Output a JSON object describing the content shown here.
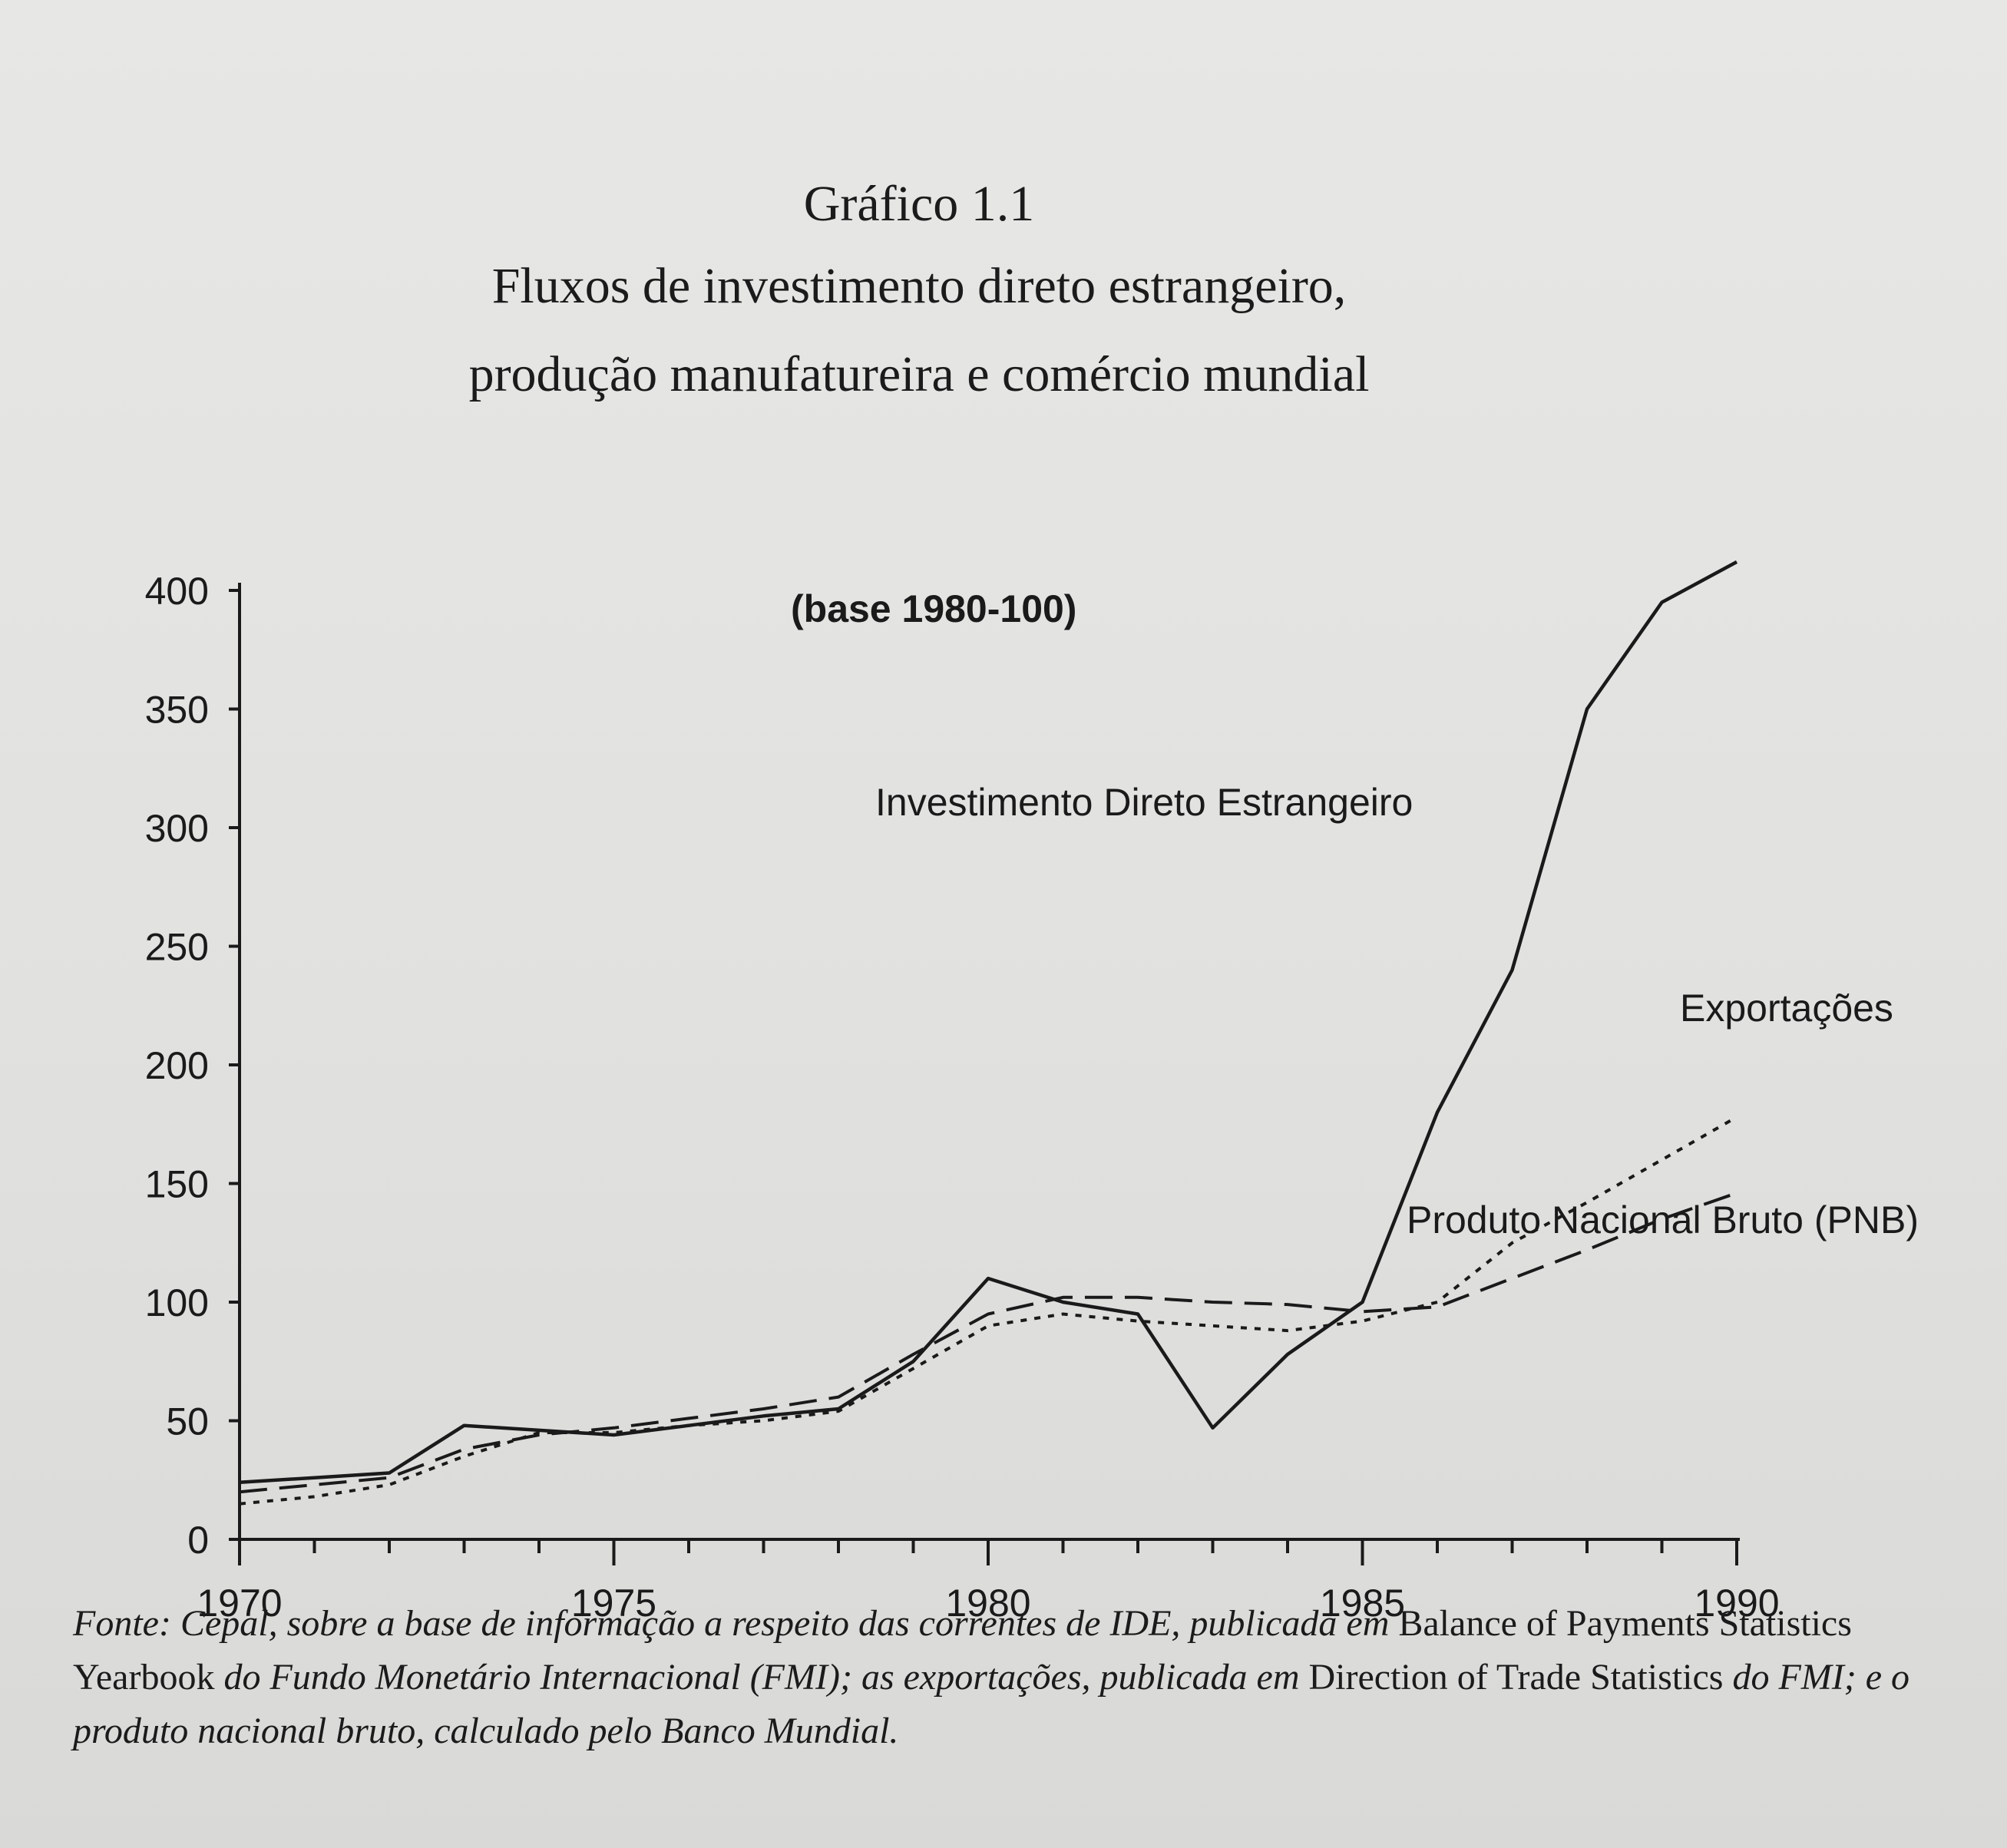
{
  "title": {
    "line1": "Gráfico 1.1",
    "line2": "Fluxos de investimento direto estrangeiro,",
    "line3": "produção manufatureira e comércio mundial"
  },
  "chart_data": {
    "type": "line",
    "annotation": "(base 1980-100)",
    "xlim": [
      1970,
      1990
    ],
    "ylim": [
      0,
      400
    ],
    "x_ticks": [
      "1970",
      "1975",
      "1980",
      "1985",
      "1990"
    ],
    "y_ticks": [
      "0",
      "50",
      "100",
      "150",
      "200",
      "250",
      "300",
      "350",
      "400"
    ],
    "x": [
      1970,
      1971,
      1972,
      1973,
      1974,
      1975,
      1976,
      1977,
      1978,
      1979,
      1980,
      1981,
      1982,
      1983,
      1984,
      1985,
      1986,
      1987,
      1988,
      1989,
      1990
    ],
    "series": [
      {
        "name": "Investimento Direto Estrangeiro",
        "style": "solid",
        "values": [
          24,
          26,
          28,
          48,
          46,
          44,
          48,
          52,
          55,
          75,
          110,
          100,
          95,
          47,
          78,
          100,
          180,
          240,
          350,
          395,
          412
        ]
      },
      {
        "name": "Exportações",
        "style": "dotted",
        "values": [
          15,
          18,
          23,
          35,
          45,
          45,
          48,
          50,
          54,
          72,
          90,
          95,
          92,
          90,
          88,
          92,
          100,
          125,
          142,
          160,
          178
        ]
      },
      {
        "name": "Produto Nacional Bruto (PNB)",
        "style": "dashed",
        "values": [
          20,
          23,
          26,
          38,
          44,
          47,
          51,
          55,
          60,
          78,
          95,
          102,
          102,
          100,
          99,
          96,
          98,
          110,
          122,
          135,
          146
        ]
      }
    ],
    "legend_placement": "inline labels"
  },
  "footnote": {
    "part1": "Fonte: Cepal, sobre a base de informação a respeito das correntes de IDE, publicada em ",
    "part2": "Balance of Payments Statistics Yearbook",
    "part3": " do Fundo Monetário Internacional (FMI); as exportações, publicada em ",
    "part4": "Direction of Trade Statistics",
    "part5": " do FMI; e o produto nacional bruto, calculado pelo Banco Mundial."
  }
}
